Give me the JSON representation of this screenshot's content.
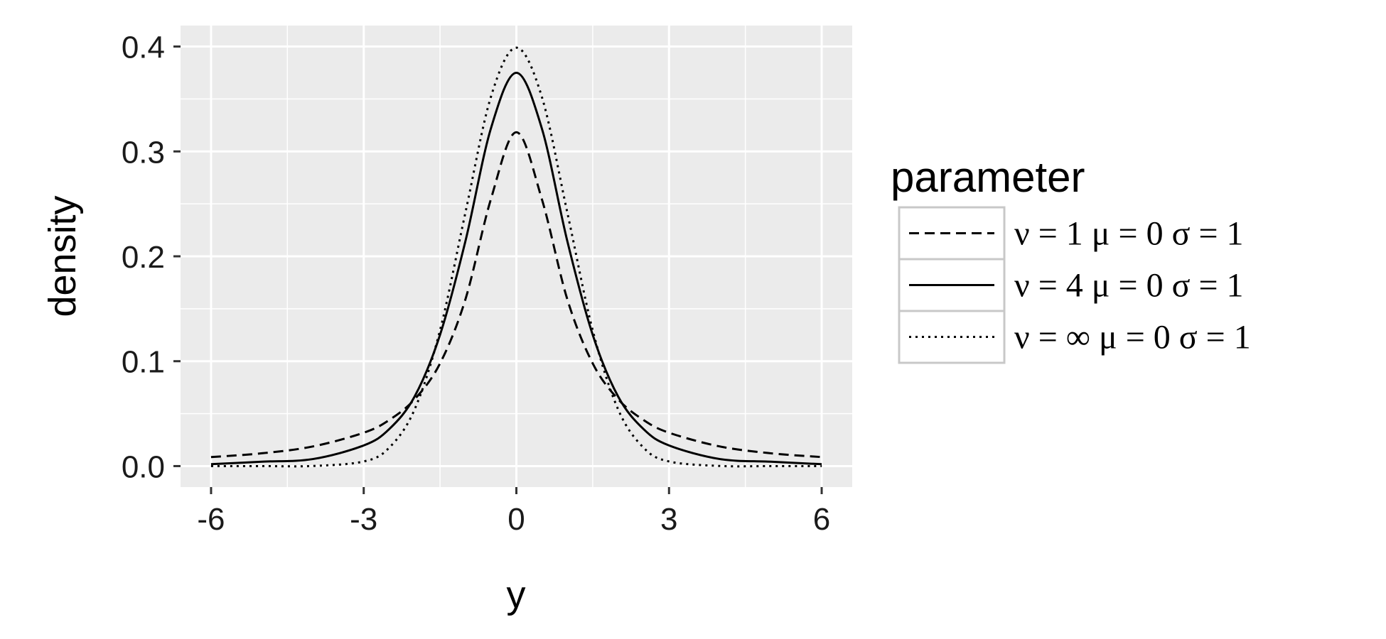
{
  "chart_data": {
    "type": "line",
    "title": "",
    "xlabel": "y",
    "ylabel": "density",
    "xlim": [
      -6.6,
      6.6
    ],
    "ylim": [
      -0.02,
      0.42
    ],
    "x_ticks": [
      -6,
      -3,
      0,
      3,
      6
    ],
    "x_tick_labels": [
      "-6",
      "-3",
      "0",
      "3",
      "6"
    ],
    "y_ticks": [
      0.0,
      0.1,
      0.2,
      0.3,
      0.4
    ],
    "y_tick_labels": [
      "0.0",
      "0.1",
      "0.2",
      "0.3",
      "0.4"
    ],
    "grid": true,
    "legend": {
      "title": "parameter",
      "position": "right",
      "entries": [
        {
          "label": "ν = 1  μ = 0  σ = 1",
          "linestyle": "dashed"
        },
        {
          "label": "ν = 4  μ = 0  σ = 1",
          "linestyle": "solid"
        },
        {
          "label": "ν = ∞  μ = 0  σ = 1",
          "linestyle": "dotted"
        }
      ]
    },
    "x": [
      -6,
      -5,
      -4,
      -3,
      -2.5,
      -2,
      -1.5,
      -1,
      -0.5,
      0,
      0.5,
      1,
      1.5,
      2,
      2.5,
      3,
      4,
      5,
      6
    ],
    "series": [
      {
        "name": "ν = 1  μ = 0  σ = 1",
        "linestyle": "dashed",
        "values": [
          0.0086,
          0.0122,
          0.0187,
          0.0318,
          0.0439,
          0.0637,
          0.0979,
          0.1592,
          0.2546,
          0.3183,
          0.2546,
          0.1592,
          0.0979,
          0.0637,
          0.0439,
          0.0318,
          0.0187,
          0.0122,
          0.0086
        ]
      },
      {
        "name": "ν = 4  μ = 0  σ = 1",
        "linestyle": "solid",
        "values": [
          0.0018,
          0.0042,
          0.0067,
          0.0197,
          0.0352,
          0.0663,
          0.1252,
          0.2147,
          0.322,
          0.375,
          0.322,
          0.2147,
          0.1252,
          0.0663,
          0.0352,
          0.0197,
          0.0067,
          0.0042,
          0.0018
        ]
      },
      {
        "name": "ν = ∞  μ = 0  σ = 1",
        "linestyle": "dotted",
        "values": [
          0.0,
          0.0,
          0.0001,
          0.0044,
          0.0175,
          0.054,
          0.1295,
          0.242,
          0.3521,
          0.3989,
          0.3521,
          0.242,
          0.1295,
          0.054,
          0.0175,
          0.0044,
          0.0001,
          0.0,
          0.0
        ]
      }
    ]
  }
}
